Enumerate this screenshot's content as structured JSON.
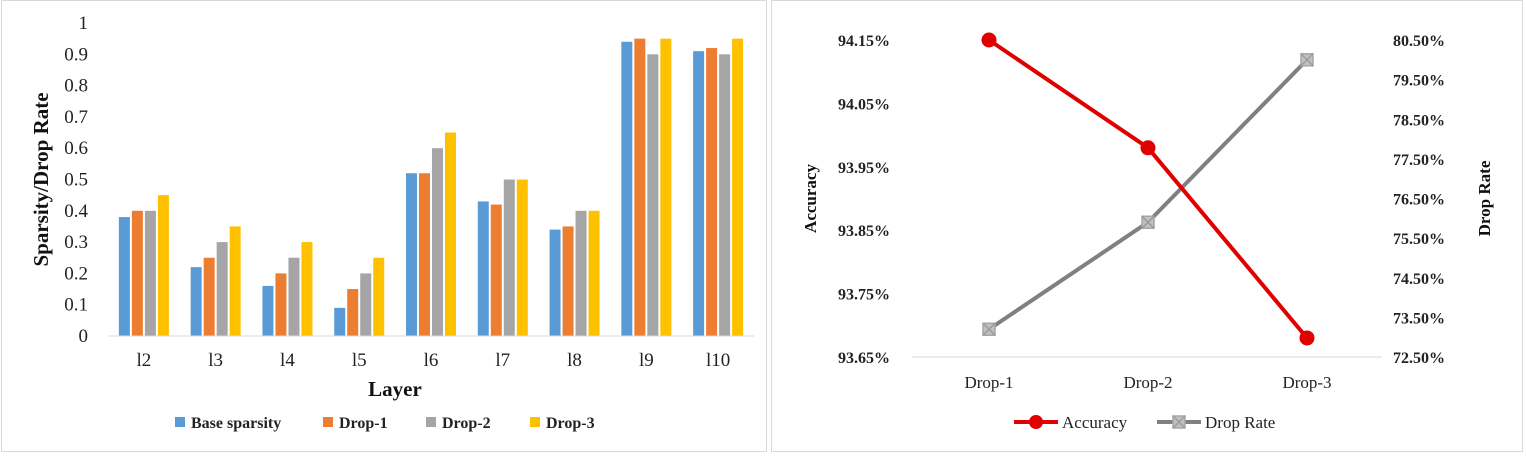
{
  "chart_data": [
    {
      "type": "bar",
      "xlabel": "Layer",
      "ylabel": "Sparsity/Drop Rate",
      "ylim": [
        0,
        1
      ],
      "yticks": [
        "0",
        "0.1",
        "0.2",
        "0.3",
        "0.4",
        "0.5",
        "0.6",
        "0.7",
        "0.8",
        "0.9",
        "1"
      ],
      "categories": [
        "l2",
        "l3",
        "l4",
        "l5",
        "l6",
        "l7",
        "l8",
        "l9",
        "l10"
      ],
      "legend_position": "bottom",
      "series": [
        {
          "name": "Base sparsity",
          "color": "#5b9bd5",
          "values": [
            0.38,
            0.22,
            0.16,
            0.09,
            0.52,
            0.43,
            0.34,
            0.94,
            0.91
          ]
        },
        {
          "name": "Drop-1",
          "color": "#ed7d31",
          "values": [
            0.4,
            0.25,
            0.2,
            0.15,
            0.52,
            0.42,
            0.35,
            0.95,
            0.92
          ]
        },
        {
          "name": "Drop-2",
          "color": "#a5a5a5",
          "values": [
            0.4,
            0.3,
            0.25,
            0.2,
            0.6,
            0.5,
            0.4,
            0.9,
            0.9
          ]
        },
        {
          "name": "Drop-3",
          "color": "#ffc000",
          "values": [
            0.45,
            0.35,
            0.3,
            0.25,
            0.65,
            0.5,
            0.4,
            0.95,
            0.95
          ]
        }
      ]
    },
    {
      "type": "line",
      "categories": [
        "Drop-1",
        "Drop-2",
        "Drop-3"
      ],
      "ylabel": "Accuracy",
      "y2label": "Drop Rate",
      "ylim": [
        93.65,
        94.15
      ],
      "y2lim": [
        72.5,
        80.5
      ],
      "yticks": [
        "94.15%",
        "94.05%",
        "93.95%",
        "93.85%",
        "93.75%",
        "93.65%"
      ],
      "y2ticks": [
        "80.50%",
        "79.50%",
        "78.50%",
        "77.50%",
        "76.50%",
        "75.50%",
        "74.50%",
        "73.50%",
        "72.50%"
      ],
      "legend_position": "bottom",
      "series": [
        {
          "name": "Accuracy",
          "axis": "left",
          "color": "#e00000",
          "marker": "circle",
          "values": [
            94.15,
            93.98,
            93.68
          ]
        },
        {
          "name": "Drop Rate",
          "axis": "right",
          "color": "#808080",
          "marker": "square-x",
          "values": [
            73.2,
            75.9,
            80.0
          ]
        }
      ]
    }
  ]
}
